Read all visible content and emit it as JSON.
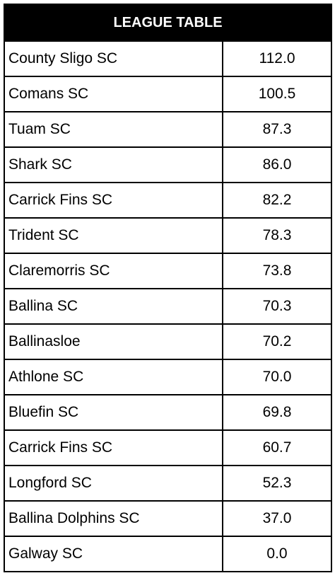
{
  "table": {
    "title": "LEAGUE TABLE",
    "rows": [
      [
        "County Sligo SC",
        "112.0"
      ],
      [
        "Comans SC",
        "100.5"
      ],
      [
        "Tuam SC",
        "87.3"
      ],
      [
        "Shark SC",
        "86.0"
      ],
      [
        "Carrick Fins SC",
        "82.2"
      ],
      [
        "Trident SC",
        "78.3"
      ],
      [
        "Claremorris SC",
        "73.8"
      ],
      [
        "Ballina SC",
        "70.3"
      ],
      [
        "Ballinasloe",
        "70.2"
      ],
      [
        "Athlone SC",
        "70.0"
      ],
      [
        "Bluefin SC",
        "69.8"
      ],
      [
        "Carrick Fins SC",
        "60.7"
      ],
      [
        "Longford SC",
        "52.3"
      ],
      [
        "Ballina Dolphins SC",
        "37.0"
      ],
      [
        "Galway SC",
        "0.0"
      ]
    ]
  }
}
